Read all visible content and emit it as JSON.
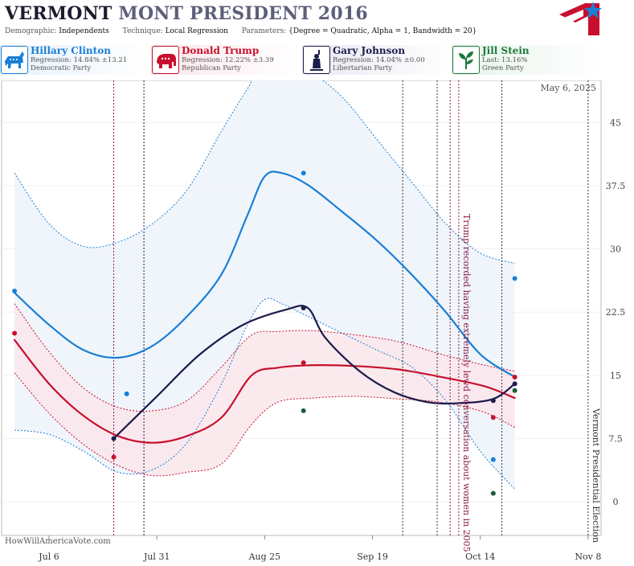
{
  "header": {
    "title_state": "VERMONT",
    "title_rest": "MONT PRESIDENT 2016",
    "params": [
      {
        "key": "Demographic:",
        "value": "Independents"
      },
      {
        "key": "Technique:",
        "value": "Local Regression"
      },
      {
        "key": "Parameters:",
        "value": "{Degree = Quadratic, Alpha = 1, Bandwidth = 20}"
      }
    ]
  },
  "candidates": [
    {
      "name": "Hillary Clinton",
      "stat": "Regression: 14.84% ±13.21",
      "party": "Democratic Party",
      "color": "#1a7fd6",
      "icon": "donkey-icon",
      "bg": "#e6f1fb"
    },
    {
      "name": "Donald Trump",
      "stat": "Regression: 12.22% ±3.39",
      "party": "Republican Party",
      "color": "#c8102e",
      "icon": "elephant-icon",
      "bg": "#fbe6ea"
    },
    {
      "name": "Gary Johnson",
      "stat": "Regression: 14.04% ±0.00",
      "party": "Libertarian Party",
      "color": "#1c1b4b",
      "icon": "statue-of-liberty-icon",
      "bg": "#e8e8f2"
    },
    {
      "name": "Jill Stein",
      "stat": "Last: 13.16%",
      "party": "Green Party",
      "color": "#1b7a3a",
      "icon": "green-leaf-icon",
      "bg": "#e6f3ea"
    }
  ],
  "footer": {
    "site": "HowWillAmericaVote.com"
  },
  "chart_data": {
    "type": "line",
    "date_label": "May 6, 2025",
    "x_range": [
      "2016-06-25",
      "2016-11-11"
    ],
    "ylim": [
      -4,
      50
    ],
    "y_ticks": [
      0,
      7.5,
      15,
      22.5,
      30,
      37.5,
      45
    ],
    "x_ticks": [
      {
        "date": "2016-07-06",
        "label": "Jul 6"
      },
      {
        "date": "2016-07-31",
        "label": "Jul 31"
      },
      {
        "date": "2016-08-25",
        "label": "Aug 25"
      },
      {
        "date": "2016-09-19",
        "label": "Sep 19"
      },
      {
        "date": "2016-10-14",
        "label": "Oct 14"
      },
      {
        "date": "2016-11-08",
        "label": "Nov 8"
      }
    ],
    "event_lines": [
      {
        "date": "2016-07-21",
        "color": "#8b1a4a"
      },
      {
        "date": "2016-07-28",
        "color": "#1c1b4b"
      },
      {
        "date": "2016-09-26",
        "color": "#333333"
      },
      {
        "date": "2016-10-04",
        "color": "#333333"
      },
      {
        "date": "2016-10-07",
        "color": "#8b1a4a"
      },
      {
        "date": "2016-10-09",
        "color": "#8b1a4a"
      },
      {
        "date": "2016-10-19",
        "color": "#333333"
      },
      {
        "date": "2016-11-08",
        "color": "#333333"
      }
    ],
    "annotations": [
      {
        "date": "2016-10-09",
        "text": "Trump recorded having extremely lewd conversation about women in 2005",
        "color": "#8b1a4a"
      },
      {
        "date": "2016-11-08",
        "text": "Vermont Presidential Election",
        "color": "#333333"
      }
    ],
    "series": [
      {
        "name": "Hillary Clinton",
        "color": "#1a7fd6",
        "band_fill": "#eef4fb",
        "points": [
          [
            "2016-06-28",
            24.8
          ],
          [
            "2016-07-06",
            21.0
          ],
          [
            "2016-07-14",
            18.0
          ],
          [
            "2016-07-22",
            17.1
          ],
          [
            "2016-07-30",
            18.5
          ],
          [
            "2016-08-07",
            22.0
          ],
          [
            "2016-08-15",
            27.0
          ],
          [
            "2016-08-21",
            34.0
          ],
          [
            "2016-08-25",
            38.6
          ],
          [
            "2016-08-29",
            39.0
          ],
          [
            "2016-09-04",
            37.6
          ],
          [
            "2016-09-12",
            34.4
          ],
          [
            "2016-09-20",
            31.0
          ],
          [
            "2016-09-28",
            27.0
          ],
          [
            "2016-10-06",
            22.5
          ],
          [
            "2016-10-14",
            17.5
          ],
          [
            "2016-10-22",
            14.8
          ]
        ],
        "upper": [
          [
            "2016-06-28",
            39.0
          ],
          [
            "2016-07-06",
            33.0
          ],
          [
            "2016-07-14",
            30.3
          ],
          [
            "2016-07-22",
            30.8
          ],
          [
            "2016-07-30",
            33.0
          ],
          [
            "2016-08-07",
            37.0
          ],
          [
            "2016-08-15",
            44.0
          ],
          [
            "2016-08-21",
            49.0
          ],
          [
            "2016-08-25",
            52.0
          ],
          [
            "2016-09-04",
            51.0
          ],
          [
            "2016-09-12",
            48.0
          ],
          [
            "2016-09-20",
            43.0
          ],
          [
            "2016-09-28",
            38.0
          ],
          [
            "2016-10-06",
            33.0
          ],
          [
            "2016-10-14",
            29.5
          ],
          [
            "2016-10-22",
            28.3
          ]
        ],
        "lower": [
          [
            "2016-06-28",
            8.5
          ],
          [
            "2016-07-06",
            8.0
          ],
          [
            "2016-07-14",
            6.0
          ],
          [
            "2016-07-22",
            3.5
          ],
          [
            "2016-07-30",
            3.8
          ],
          [
            "2016-08-07",
            7.0
          ],
          [
            "2016-08-15",
            14.0
          ],
          [
            "2016-08-21",
            21.0
          ],
          [
            "2016-08-25",
            24.0
          ],
          [
            "2016-08-29",
            23.5
          ],
          [
            "2016-09-04",
            22.0
          ],
          [
            "2016-09-12",
            20.0
          ],
          [
            "2016-09-20",
            18.0
          ],
          [
            "2016-09-28",
            16.0
          ],
          [
            "2016-10-06",
            12.0
          ],
          [
            "2016-10-14",
            6.0
          ],
          [
            "2016-10-22",
            1.5
          ]
        ],
        "polls": [
          [
            "2016-06-28",
            25.0
          ],
          [
            "2016-07-24",
            12.8
          ],
          [
            "2016-09-03",
            39.0
          ],
          [
            "2016-10-17",
            5.0
          ],
          [
            "2016-10-22",
            26.5
          ]
        ]
      },
      {
        "name": "Donald Trump",
        "color": "#c8102e",
        "band_fill": "#f9e8ec",
        "points": [
          [
            "2016-06-28",
            19.2
          ],
          [
            "2016-07-06",
            14.0
          ],
          [
            "2016-07-14",
            10.2
          ],
          [
            "2016-07-22",
            7.8
          ],
          [
            "2016-07-30",
            7.0
          ],
          [
            "2016-08-07",
            7.8
          ],
          [
            "2016-08-15",
            10.0
          ],
          [
            "2016-08-22",
            15.0
          ],
          [
            "2016-08-28",
            15.9
          ],
          [
            "2016-09-05",
            16.2
          ],
          [
            "2016-09-15",
            16.1
          ],
          [
            "2016-09-25",
            15.7
          ],
          [
            "2016-10-05",
            14.8
          ],
          [
            "2016-10-15",
            13.7
          ],
          [
            "2016-10-22",
            12.3
          ]
        ],
        "upper": [
          [
            "2016-06-28",
            23.5
          ],
          [
            "2016-07-06",
            17.8
          ],
          [
            "2016-07-14",
            13.5
          ],
          [
            "2016-07-22",
            11.2
          ],
          [
            "2016-07-30",
            10.8
          ],
          [
            "2016-08-07",
            12.0
          ],
          [
            "2016-08-15",
            16.0
          ],
          [
            "2016-08-22",
            19.8
          ],
          [
            "2016-08-28",
            20.2
          ],
          [
            "2016-09-05",
            20.3
          ],
          [
            "2016-09-15",
            19.8
          ],
          [
            "2016-09-25",
            19.0
          ],
          [
            "2016-10-05",
            17.5
          ],
          [
            "2016-10-15",
            16.2
          ],
          [
            "2016-10-22",
            15.5
          ]
        ],
        "lower": [
          [
            "2016-06-28",
            15.3
          ],
          [
            "2016-07-06",
            10.5
          ],
          [
            "2016-07-14",
            6.8
          ],
          [
            "2016-07-22",
            4.3
          ],
          [
            "2016-07-30",
            3.1
          ],
          [
            "2016-08-07",
            3.5
          ],
          [
            "2016-08-15",
            4.5
          ],
          [
            "2016-08-22",
            9.2
          ],
          [
            "2016-08-28",
            11.8
          ],
          [
            "2016-09-05",
            12.3
          ],
          [
            "2016-09-15",
            12.5
          ],
          [
            "2016-09-25",
            12.2
          ],
          [
            "2016-10-05",
            11.8
          ],
          [
            "2016-10-15",
            10.6
          ],
          [
            "2016-10-22",
            8.8
          ]
        ],
        "polls": [
          [
            "2016-06-28",
            20.0
          ],
          [
            "2016-07-21",
            5.3
          ],
          [
            "2016-09-03",
            16.5
          ],
          [
            "2016-10-17",
            10.0
          ],
          [
            "2016-10-22",
            14.8
          ]
        ]
      },
      {
        "name": "Gary Johnson",
        "color": "#1c1b4b",
        "band_fill": "",
        "points": [
          [
            "2016-07-21",
            7.5
          ],
          [
            "2016-07-31",
            12.5
          ],
          [
            "2016-08-10",
            17.5
          ],
          [
            "2016-08-20",
            21.0
          ],
          [
            "2016-08-30",
            22.8
          ],
          [
            "2016-09-04",
            23.0
          ],
          [
            "2016-09-08",
            19.5
          ],
          [
            "2016-09-16",
            15.5
          ],
          [
            "2016-09-24",
            13.0
          ],
          [
            "2016-10-02",
            11.8
          ],
          [
            "2016-10-09",
            11.7
          ],
          [
            "2016-10-17",
            12.2
          ],
          [
            "2016-10-22",
            14.0
          ]
        ],
        "upper": [],
        "lower": [],
        "polls": [
          [
            "2016-07-21",
            7.5
          ],
          [
            "2016-09-03",
            23.0
          ],
          [
            "2016-10-17",
            12.0
          ],
          [
            "2016-10-22",
            14.0
          ]
        ]
      },
      {
        "name": "Jill Stein",
        "color": "#1b5e3a",
        "band_fill": "",
        "points": [],
        "upper": [],
        "lower": [],
        "polls": [
          [
            "2016-09-03",
            10.8
          ],
          [
            "2016-10-17",
            1.0
          ],
          [
            "2016-10-22",
            13.2
          ]
        ]
      }
    ]
  }
}
